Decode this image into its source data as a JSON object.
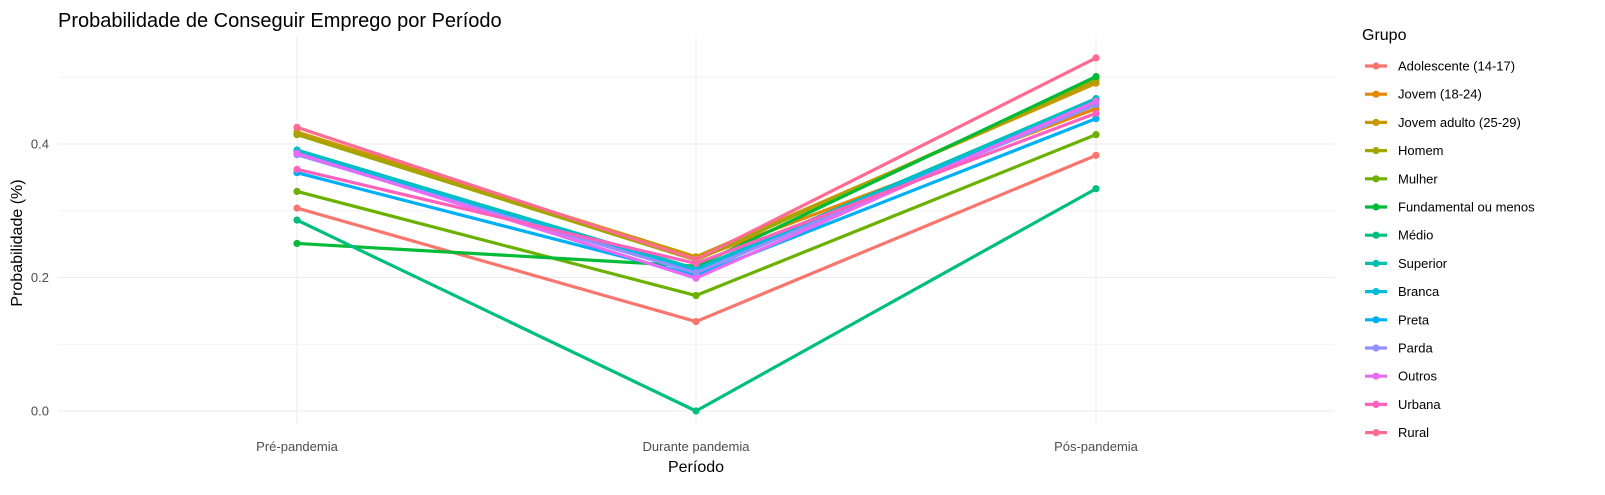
{
  "chart_data": {
    "type": "line",
    "title": "Probabilidade de Conseguir Emprego por Período",
    "xlabel": "Período",
    "ylabel": "Probabilidade (%)",
    "categories": [
      "Pré-pandemia",
      "Durante pandemia",
      "Pós-pandemia"
    ],
    "ylim": [
      -0.001,
      0.53
    ],
    "yticks": [
      0.0,
      0.2,
      0.4
    ],
    "ytick_labels": [
      "0.0",
      "0.2",
      "0.4"
    ],
    "grid": true,
    "legend_title": "Grupo",
    "legend_position": "right",
    "series": [
      {
        "name": "Adolescente (14-17)",
        "color": "#F8766D",
        "values": [
          0.304,
          0.134,
          0.383
        ]
      },
      {
        "name": "Jovem (18-24)",
        "color": "#E58700",
        "values": [
          0.415,
          0.228,
          0.453
        ]
      },
      {
        "name": "Jovem adulto (25-29)",
        "color": "#C99800",
        "values": [
          0.418,
          0.231,
          0.491
        ]
      },
      {
        "name": "Homem",
        "color": "#A3A500",
        "values": [
          0.414,
          0.226,
          0.496
        ]
      },
      {
        "name": "Mulher",
        "color": "#6BB100",
        "values": [
          0.329,
          0.173,
          0.414
        ]
      },
      {
        "name": "Fundamental ou menos",
        "color": "#00BA38",
        "values": [
          0.251,
          0.217,
          0.501
        ]
      },
      {
        "name": "Médio",
        "color": "#00BF7D",
        "values": [
          0.286,
          0.0,
          0.333
        ]
      },
      {
        "name": "Superior",
        "color": "#00C0AF",
        "values": [
          0.391,
          0.213,
          0.468
        ]
      },
      {
        "name": "Branca",
        "color": "#00BCD8",
        "values": [
          0.389,
          0.211,
          0.465
        ]
      },
      {
        "name": "Preta",
        "color": "#00B0F6",
        "values": [
          0.357,
          0.203,
          0.438
        ]
      },
      {
        "name": "Parda",
        "color": "#9590FF",
        "values": [
          0.384,
          0.207,
          0.459
        ]
      },
      {
        "name": "Outros",
        "color": "#E76BF3",
        "values": [
          0.386,
          0.199,
          0.464
        ]
      },
      {
        "name": "Urbana",
        "color": "#FF62BC",
        "values": [
          0.362,
          0.221,
          0.446
        ]
      },
      {
        "name": "Rural",
        "color": "#FF6C91",
        "values": [
          0.425,
          0.227,
          0.529
        ]
      }
    ]
  }
}
